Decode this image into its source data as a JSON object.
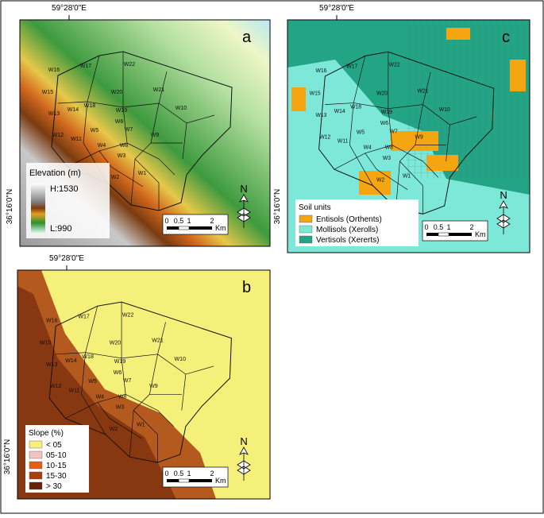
{
  "coordinates": {
    "longitude": "59°28'0\"E",
    "latitude": "36°16'0\"N"
  },
  "north": "N",
  "scale_bar": {
    "ticks": [
      "0",
      "0.5",
      "1",
      "2"
    ],
    "unit": "Km"
  },
  "watersheds": [
    "W1",
    "W2",
    "W3",
    "W4",
    "W5",
    "W6",
    "W7",
    "W8",
    "W9",
    "W10",
    "W11",
    "W12",
    "W13",
    "W14",
    "W15",
    "W16",
    "W17",
    "W18",
    "W19",
    "W20",
    "W21",
    "W22"
  ],
  "panels": [
    {
      "letter": "a",
      "legend": {
        "title": "Elevation (m)",
        "high": "H:1530",
        "low": "L:990"
      }
    },
    {
      "letter": "c",
      "legend": {
        "title": "Soil units",
        "items": [
          {
            "label": "Entisols (Orthents)",
            "color": "#f5a50f"
          },
          {
            "label": "Mollisols (Xerolls)",
            "color": "#7ee8d8"
          },
          {
            "label": "Vertisols (Xererts)",
            "color": "#23a585"
          }
        ]
      }
    },
    {
      "letter": "b",
      "legend": {
        "title": "Slope (%)",
        "items": [
          {
            "label": "< 05",
            "color": "#f5f07a"
          },
          {
            "label": "05-10",
            "color": "#f2c4c4"
          },
          {
            "label": "10-15",
            "color": "#e0601a"
          },
          {
            "label": "15-30",
            "color": "#a8400e"
          },
          {
            "label": "> 30",
            "color": "#6b2208"
          }
        ]
      }
    }
  ]
}
